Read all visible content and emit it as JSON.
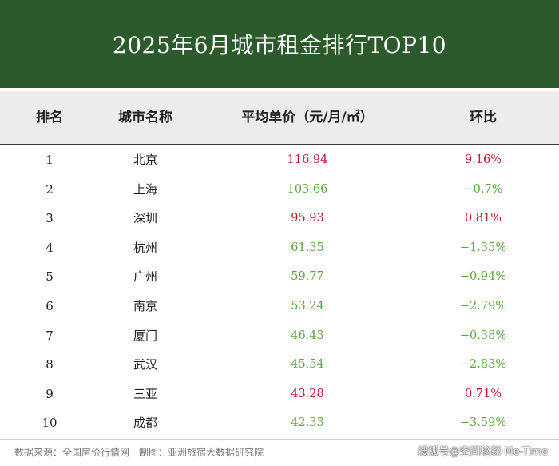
{
  "title": "2025年6月城市租金排行TOP10",
  "columns": [
    "排名",
    "城市名称",
    "平均单价（元/月/㎡）",
    "环比"
  ],
  "rows": [
    {
      "rank": "1",
      "city": "北京",
      "price": "116.94",
      "change": "9.16%",
      "price_color": "#c0192b",
      "change_color": "#c0192b"
    },
    {
      "rank": "2",
      "city": "上海",
      "price": "103.66",
      "change": "−0.7%",
      "price_color": "#5aa83c",
      "change_color": "#5aa83c"
    },
    {
      "rank": "3",
      "city": "深圳",
      "price": "95.93",
      "change": "0.81%",
      "price_color": "#c0192b",
      "change_color": "#c0192b"
    },
    {
      "rank": "4",
      "city": "杭州",
      "price": "61.35",
      "change": "−1.35%",
      "price_color": "#5aa83c",
      "change_color": "#5aa83c"
    },
    {
      "rank": "5",
      "city": "广州",
      "price": "59.77",
      "change": "−0.94%",
      "price_color": "#5aa83c",
      "change_color": "#5aa83c"
    },
    {
      "rank": "6",
      "city": "南京",
      "price": "53.24",
      "change": "−2.79%",
      "price_color": "#5aa83c",
      "change_color": "#5aa83c"
    },
    {
      "rank": "7",
      "city": "厦门",
      "price": "46.43",
      "change": "−0.38%",
      "price_color": "#5aa83c",
      "change_color": "#5aa83c"
    },
    {
      "rank": "8",
      "city": "武汉",
      "price": "45.54",
      "change": "−2.83%",
      "price_color": "#5aa83c",
      "change_color": "#5aa83c"
    },
    {
      "rank": "9",
      "city": "三亚",
      "price": "43.28",
      "change": "0.71%",
      "price_color": "#c0192b",
      "change_color": "#c0192b"
    },
    {
      "rank": "10",
      "city": "成都",
      "price": "42.33",
      "change": "−3.59%",
      "price_color": "#5aa83c",
      "change_color": "#5aa83c"
    }
  ],
  "footer": "数据来源：全国房价行情网　制图：亚洲旅宿大数据研究院",
  "watermark": "搜狐号@空间秘探 Me-Time",
  "colors": {
    "header_bg": "#2c5a2c",
    "up": "#c0192b",
    "down": "#5aa83c"
  }
}
